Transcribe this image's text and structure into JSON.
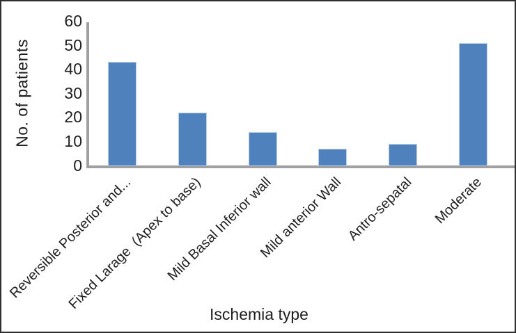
{
  "figure": {
    "background": "#ffffff",
    "border_color": "#2f2f2f"
  },
  "chart_data": {
    "type": "bar",
    "title": "",
    "xlabel": "Ischemia type",
    "ylabel": "No. of patients",
    "categories": [
      "Reversible Posterior and...",
      "Fixed Larage  (Apex to base)",
      "Mild Basal Inferior wall",
      "Mild anterior Wall",
      "Antro-sepatal",
      "Moderate"
    ],
    "values": [
      43,
      22,
      14,
      7,
      9,
      51
    ],
    "ylim": [
      0,
      60
    ],
    "yticks": [
      0,
      10,
      20,
      30,
      40,
      50,
      60
    ],
    "grid": false,
    "legend_position": "none",
    "bar_color": "#4f81bd",
    "bar_border_color": "#b8cfe8",
    "axis_color": "#a0a0a0",
    "text_color": "#1f1f1f"
  }
}
